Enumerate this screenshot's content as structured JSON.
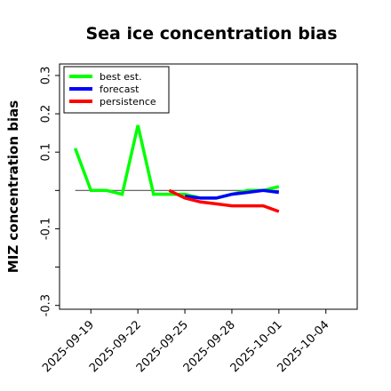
{
  "chart_data": {
    "type": "line",
    "title": "Sea ice concentration bias",
    "xlabel": "",
    "ylabel": "MIZ concentration bias",
    "ylim": [
      -0.31,
      0.33
    ],
    "xlim": [
      "2025-09-17",
      "2025-10-06"
    ],
    "yticks": [
      -0.3,
      -0.1,
      0.1,
      0.2,
      0.3
    ],
    "yticks_unlabeled": [
      -0.2,
      0.0
    ],
    "ytick_labels": [
      "-0.3",
      "-0.1",
      "0.1",
      "0.2",
      "0.3"
    ],
    "xticks": [
      "2025-09-19",
      "2025-09-22",
      "2025-09-25",
      "2025-09-28",
      "2025-10-01",
      "2025-10-04"
    ],
    "xtick_colors": [
      "#000000",
      "#000000",
      "#008000",
      "#000000",
      "#000000",
      "#000000"
    ],
    "reference_line": 0,
    "legend_position": "top-left",
    "series": [
      {
        "name": "best est.",
        "color": "#00ff00",
        "x": [
          "2025-09-18",
          "2025-09-19",
          "2025-09-20",
          "2025-09-21",
          "2025-09-22",
          "2025-09-23",
          "2025-09-24",
          "2025-09-25",
          "2025-09-26",
          "2025-09-27",
          "2025-09-28",
          "2025-09-29",
          "2025-09-30",
          "2025-10-01"
        ],
        "values": [
          0.11,
          0.0,
          0.0,
          -0.01,
          0.17,
          -0.01,
          -0.01,
          -0.01,
          -0.02,
          -0.02,
          -0.01,
          0.0,
          0.0,
          0.01
        ]
      },
      {
        "name": "forecast",
        "color": "#0000ff",
        "x": [
          "2025-09-25",
          "2025-09-26",
          "2025-09-27",
          "2025-09-28",
          "2025-09-29",
          "2025-09-30",
          "2025-10-01"
        ],
        "values": [
          -0.015,
          -0.02,
          -0.02,
          -0.01,
          -0.005,
          0.0,
          -0.005
        ]
      },
      {
        "name": "persistence",
        "color": "#ff0000",
        "x": [
          "2025-09-24",
          "2025-09-25",
          "2025-09-26",
          "2025-09-27",
          "2025-09-28",
          "2025-09-29",
          "2025-09-30",
          "2025-10-01"
        ],
        "values": [
          0.0,
          -0.02,
          -0.03,
          -0.035,
          -0.04,
          -0.04,
          -0.04,
          -0.055
        ]
      }
    ]
  }
}
